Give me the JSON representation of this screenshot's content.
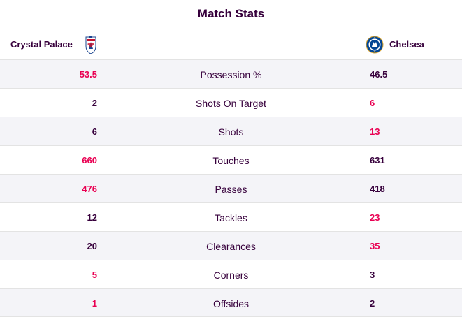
{
  "title": "Match Stats",
  "home_team": {
    "name": "Crystal Palace",
    "crest_icon": "crystal-palace-crest-icon"
  },
  "away_team": {
    "name": "Chelsea",
    "crest_icon": "chelsea-crest-icon"
  },
  "colors": {
    "highlight": "#e90052",
    "text": "#37003c"
  },
  "stats": [
    {
      "label": "Possession %",
      "home": "53.5",
      "away": "46.5",
      "leader": "home"
    },
    {
      "label": "Shots On Target",
      "home": "2",
      "away": "6",
      "leader": "away"
    },
    {
      "label": "Shots",
      "home": "6",
      "away": "13",
      "leader": "away"
    },
    {
      "label": "Touches",
      "home": "660",
      "away": "631",
      "leader": "home"
    },
    {
      "label": "Passes",
      "home": "476",
      "away": "418",
      "leader": "home"
    },
    {
      "label": "Tackles",
      "home": "12",
      "away": "23",
      "leader": "away"
    },
    {
      "label": "Clearances",
      "home": "20",
      "away": "35",
      "leader": "away"
    },
    {
      "label": "Corners",
      "home": "5",
      "away": "3",
      "leader": "home"
    },
    {
      "label": "Offsides",
      "home": "1",
      "away": "2",
      "leader": "home"
    }
  ]
}
